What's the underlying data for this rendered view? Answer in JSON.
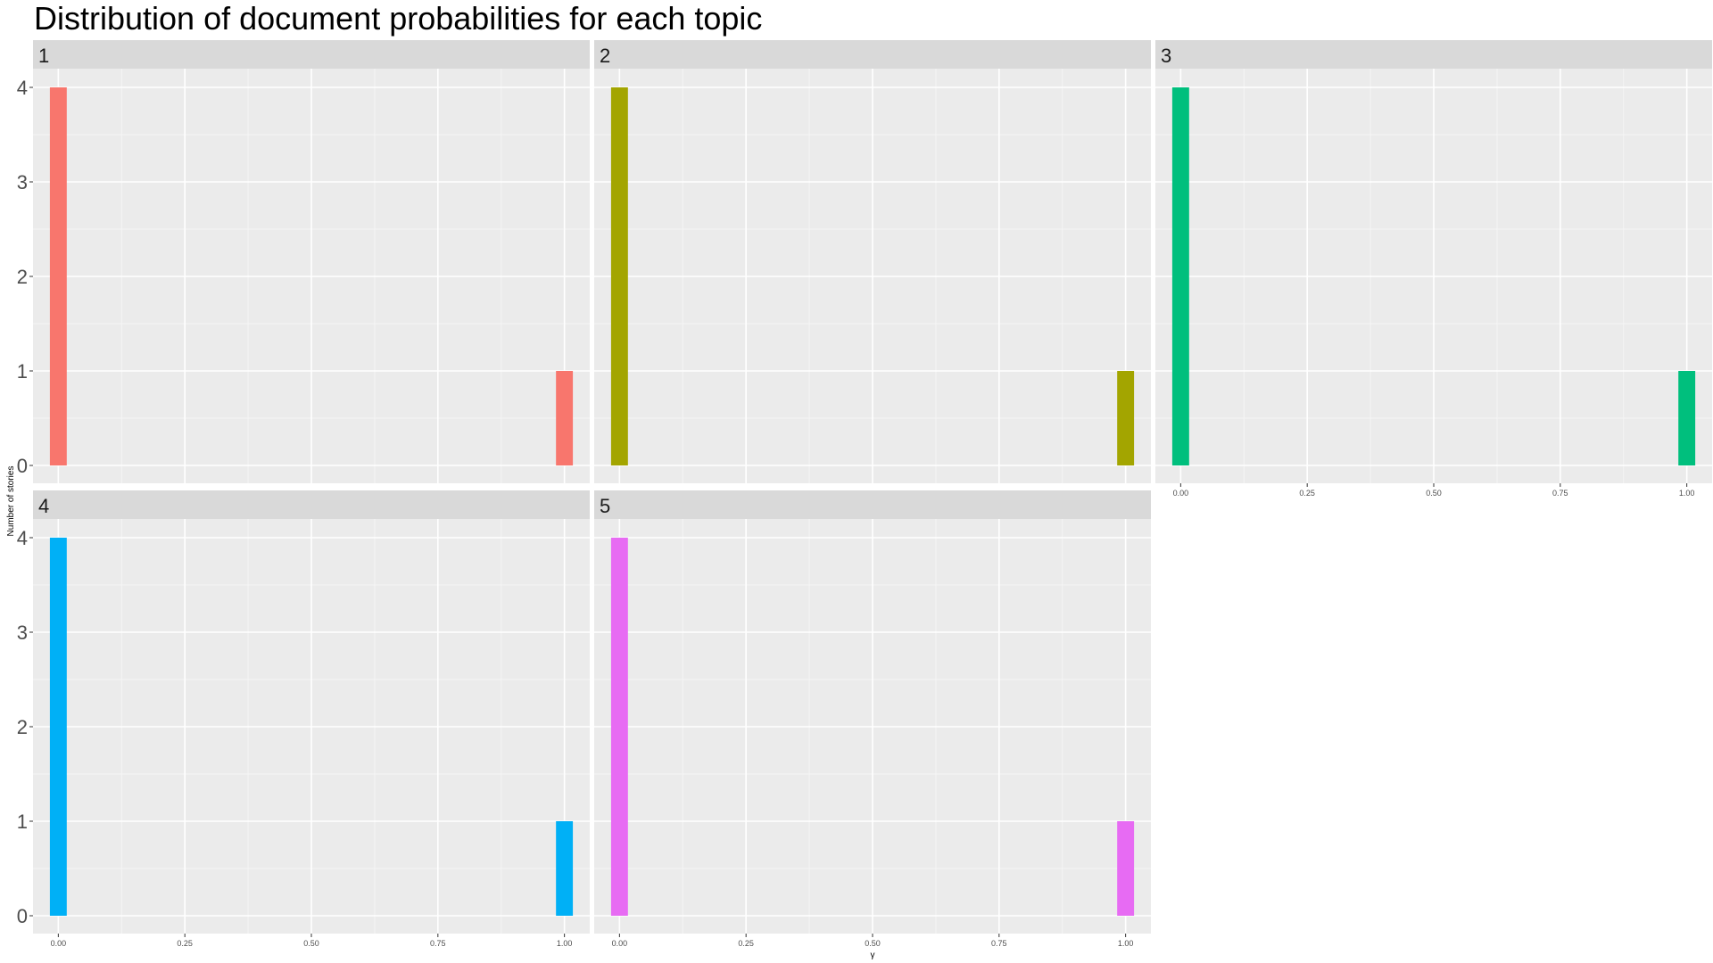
{
  "chart_data": {
    "type": "bar",
    "title": "Distribution of document probabilities for each topic",
    "xlabel": "γ",
    "ylabel": "Number of stories",
    "xlim": [
      -0.05,
      1.05
    ],
    "ylim": [
      0,
      4.3
    ],
    "x_ticks": [
      0.0,
      0.25,
      0.5,
      0.75,
      1.0
    ],
    "x_tick_labels": [
      "0.00",
      "0.25",
      "0.50",
      "0.75",
      "1.00"
    ],
    "y_ticks": [
      0,
      1,
      2,
      3,
      4
    ],
    "y_tick_labels": [
      "0",
      "1",
      "2",
      "3",
      "4"
    ],
    "grid": true,
    "legend": "none",
    "facets": [
      {
        "label": "1",
        "color": "#F8766D",
        "bins": [
          {
            "x": 0.0,
            "count": 4
          },
          {
            "x": 1.0,
            "count": 1
          }
        ]
      },
      {
        "label": "2",
        "color": "#A3A500",
        "bins": [
          {
            "x": 0.0,
            "count": 4
          },
          {
            "x": 1.0,
            "count": 1
          }
        ]
      },
      {
        "label": "3",
        "color": "#00BF7D",
        "bins": [
          {
            "x": 0.0,
            "count": 4
          },
          {
            "x": 1.0,
            "count": 1
          }
        ]
      },
      {
        "label": "4",
        "color": "#00B0F6",
        "bins": [
          {
            "x": 0.0,
            "count": 4
          },
          {
            "x": 1.0,
            "count": 1
          }
        ]
      },
      {
        "label": "5",
        "color": "#E76BF3",
        "bins": [
          {
            "x": 0.0,
            "count": 4
          },
          {
            "x": 1.0,
            "count": 1
          }
        ]
      }
    ]
  }
}
